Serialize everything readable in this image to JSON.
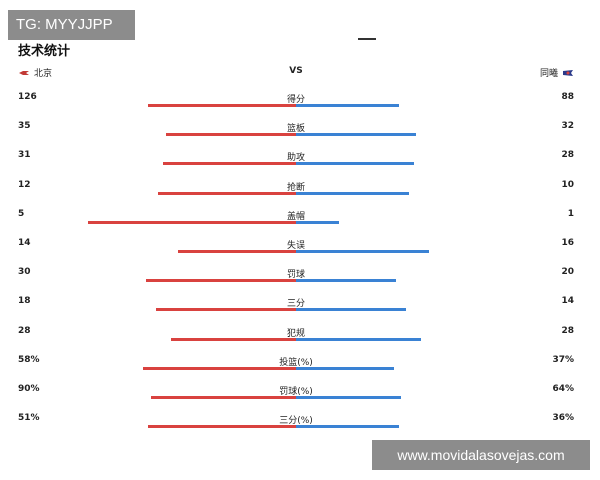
{
  "watermarks": {
    "top": "TG: MYYJJPP",
    "bottom": "www.movidalasovejas.com"
  },
  "title": "技术统计",
  "teams": {
    "left": "北京",
    "vs": "VS",
    "right": "同曦"
  },
  "colors": {
    "left_bar": "#d9423f",
    "right_bar": "#3a82d4"
  },
  "stats": [
    {
      "label": "得分",
      "left": "126",
      "right": "88",
      "left_frac": 0.59,
      "right_frac": 0.41
    },
    {
      "label": "篮板",
      "left": "35",
      "right": "32",
      "left_frac": 0.52,
      "right_frac": 0.48
    },
    {
      "label": "助攻",
      "left": "31",
      "right": "28",
      "left_frac": 0.53,
      "right_frac": 0.47
    },
    {
      "label": "抢断",
      "left": "12",
      "right": "10",
      "left_frac": 0.55,
      "right_frac": 0.45
    },
    {
      "label": "盖帽",
      "left": "5",
      "right": "1",
      "left_frac": 0.83,
      "right_frac": 0.17
    },
    {
      "label": "失误",
      "left": "14",
      "right": "16",
      "left_frac": 0.47,
      "right_frac": 0.53
    },
    {
      "label": "罚球",
      "left": "30",
      "right": "20",
      "left_frac": 0.6,
      "right_frac": 0.4
    },
    {
      "label": "三分",
      "left": "18",
      "right": "14",
      "left_frac": 0.56,
      "right_frac": 0.44
    },
    {
      "label": "犯规",
      "left": "28",
      "right": "28",
      "left_frac": 0.5,
      "right_frac": 0.5
    },
    {
      "label": "投篮(%)",
      "left": "58%",
      "right": "37%",
      "left_frac": 0.61,
      "right_frac": 0.39
    },
    {
      "label": "罚球(%)",
      "left": "90%",
      "right": "64%",
      "left_frac": 0.58,
      "right_frac": 0.42
    },
    {
      "label": "三分(%)",
      "left": "51%",
      "right": "36%",
      "left_frac": 0.59,
      "right_frac": 0.41
    }
  ]
}
